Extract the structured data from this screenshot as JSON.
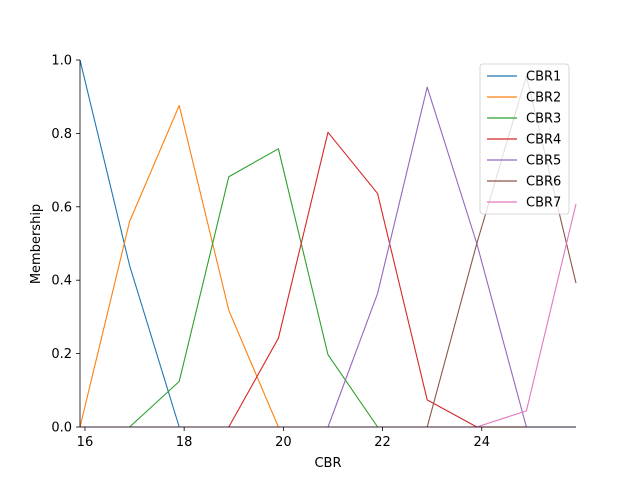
{
  "chart_data": {
    "type": "line",
    "xlabel": "CBR",
    "ylabel": "Membership",
    "xlim": [
      15.9,
      25.9
    ],
    "ylim": [
      0,
      1.0
    ],
    "xticks": [
      16,
      18,
      20,
      22,
      24
    ],
    "yticks": [
      0.0,
      0.2,
      0.4,
      0.6,
      0.8,
      1.0
    ],
    "ytick_labels": [
      "0.0",
      "0.2",
      "0.4",
      "0.6",
      "0.8",
      "1.0"
    ],
    "grid": false,
    "legend_position": "top-right",
    "x": [
      15.9,
      16.9,
      17.9,
      18.9,
      19.9,
      20.9,
      21.9,
      22.9,
      23.9,
      24.9,
      25.9
    ],
    "series": [
      {
        "name": "CBR1",
        "color": "#1f77b4",
        "values": [
          1.0,
          0.44,
          0.0,
          0.0,
          0.0,
          0.0,
          0.0,
          0.0,
          0.0,
          0.0,
          0.0
        ]
      },
      {
        "name": "CBR2",
        "color": "#ff7f0e",
        "values": [
          0.0,
          0.56,
          0.876,
          0.318,
          0.0,
          0.0,
          0.0,
          0.0,
          0.0,
          0.0,
          0.0
        ]
      },
      {
        "name": "CBR3",
        "color": "#2ca02c",
        "values": [
          0.0,
          0.0,
          0.124,
          0.682,
          0.758,
          0.197,
          0.0,
          0.0,
          0.0,
          0.0,
          0.0
        ]
      },
      {
        "name": "CBR4",
        "color": "#d62728",
        "values": [
          0.0,
          0.0,
          0.0,
          0.0,
          0.242,
          0.803,
          0.636,
          0.074,
          0.0,
          0.0,
          0.0
        ]
      },
      {
        "name": "CBR5",
        "color": "#9467bd",
        "values": [
          0.0,
          0.0,
          0.0,
          0.0,
          0.0,
          0.0,
          0.364,
          0.926,
          0.5,
          0.0,
          0.0
        ]
      },
      {
        "name": "CBR6",
        "color": "#8c564b",
        "values": [
          0.0,
          0.0,
          0.0,
          0.0,
          0.0,
          0.0,
          0.0,
          0.0,
          0.5,
          0.956,
          0.392
        ]
      },
      {
        "name": "CBR7",
        "color": "#e377c2",
        "values": [
          0.0,
          0.0,
          0.0,
          0.0,
          0.0,
          0.0,
          0.0,
          0.0,
          0.0,
          0.044,
          0.608
        ]
      }
    ]
  }
}
